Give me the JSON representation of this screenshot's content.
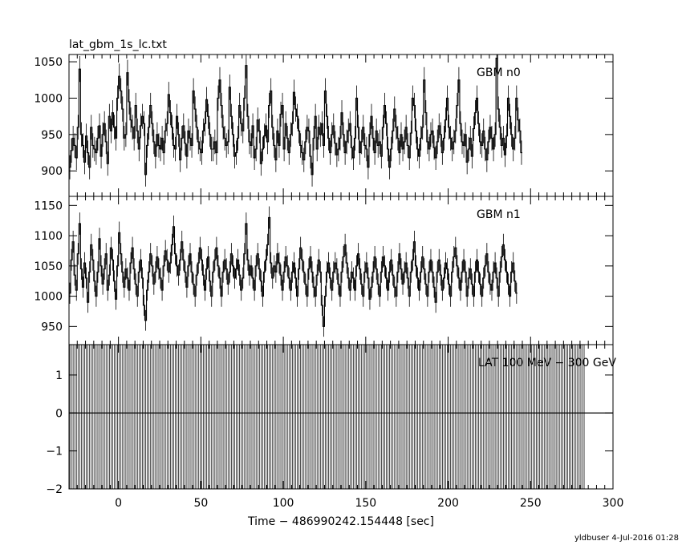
{
  "chart_data": {
    "type": "line",
    "title": "lat_gbm_1s_lc.txt",
    "xlabel": "Time − 486990242.154448 [sec]",
    "xlim": [
      -30,
      300
    ],
    "x_ticks": [
      0,
      50,
      100,
      150,
      200,
      250,
      300
    ],
    "x_tick_labels": [
      "0",
      "50",
      "100",
      "150",
      "200",
      "250",
      "300"
    ],
    "footer": "yldbuser  4-Jul-2016 01:28",
    "panels": [
      {
        "name": "GBM n0",
        "ylim": [
          865,
          1060
        ],
        "y_ticks": [
          900,
          950,
          1000,
          1050
        ],
        "y_tick_labels": [
          "900",
          "950",
          "1000",
          "1050"
        ],
        "x_start": -30,
        "x_step": 1,
        "values": [
          905,
          928,
          945,
          935,
          918,
          960,
          1040,
          950,
          935,
          912,
          948,
          925,
          905,
          960,
          935,
          930,
          925,
          945,
          962,
          920,
          950,
          965,
          940,
          910,
          975,
          955,
          980,
          960,
          945,
          1000,
          1030,
          1010,
          985,
          945,
          950,
          1035,
          995,
          970,
          960,
          945,
          990,
          955,
          930,
          962,
          975,
          965,
          895,
          935,
          960,
          990,
          965,
          940,
          920,
          950,
          935,
          930,
          945,
          925,
          955,
          965,
          1005,
          980,
          960,
          935,
          930,
          975,
          950,
          915,
          945,
          962,
          938,
          920,
          955,
          945,
          935,
          1010,
          985,
          960,
          940,
          930,
          925,
          955,
          965,
          998,
          975,
          950,
          930,
          930,
          940,
          925,
          1000,
          1025,
          990,
          960,
          945,
          935,
          940,
          1015,
          975,
          950,
          920,
          925,
          945,
          990,
          965,
          955,
          1000,
          1045,
          975,
          940,
          935,
          962,
          918,
          930,
          970,
          955,
          910,
          930,
          948,
          962,
          940,
          990,
          1010,
          960,
          935,
          915,
          955,
          935,
          978,
          990,
          930,
          965,
          945,
          925,
          950,
          965,
          1008,
          985,
          975,
          955,
          935,
          925,
          915,
          940,
          960,
          955,
          920,
          895,
          945,
          975,
          930,
          960,
          950,
          965,
          935,
          1010,
          975,
          945,
          925,
          950,
          962,
          938,
          922,
          930,
          945,
          980,
          950,
          925,
          940,
          955,
          965,
          932,
          918,
          945,
          1000,
          960,
          925,
          940,
          960,
          935,
          930,
          905,
          950,
          975,
          945,
          925,
          955,
          935,
          940,
          920,
          960,
          990,
          965,
          930,
          905,
          930,
          955,
          985,
          960,
          945,
          925,
          950,
          930,
          940,
          960,
          935,
          918,
          952,
          1000,
          990,
          955,
          930,
          920,
          945,
          960,
          1025,
          980,
          940,
          930,
          950,
          955,
          932,
          918,
          940,
          962,
          950,
          925,
          945,
          970,
          1000,
          960,
          945,
          930,
          940,
          955,
          990,
          1025,
          965,
          940,
          935,
          950,
          912,
          930,
          945,
          920,
          958,
          980,
          1000,
          965,
          940,
          935,
          955,
          930,
          915,
          940,
          960,
          945,
          930,
          950,
          1055,
          985,
          960,
          935,
          945,
          922,
          948,
          1000,
          975,
          950,
          930,
          945,
          1000,
          970,
          955,
          925
        ]
      },
      {
        "name": "GBM n1",
        "ylim": [
          920,
          1165
        ],
        "y_ticks": [
          950,
          1000,
          1050,
          1100,
          1150
        ],
        "y_tick_labels": [
          "950",
          "1000",
          "1050",
          "1100",
          "1150"
        ],
        "x_start": -30,
        "x_step": 1,
        "values": [
          1005,
          1060,
          1090,
          1035,
          1010,
          1070,
          1120,
          1045,
          1015,
          1055,
          1030,
          990,
          1040,
          1085,
          1060,
          1025,
          1000,
          1040,
          1095,
          1050,
          1020,
          1045,
          1070,
          1010,
          1035,
          1080,
          1060,
          1025,
          995,
          1050,
          1105,
          1070,
          1040,
          1015,
          1045,
          1030,
          1010,
          1055,
          1080,
          1045,
          1020,
          1000,
          1040,
          1060,
          1030,
          985,
          960,
          1010,
          1040,
          1070,
          1050,
          1020,
          1040,
          1065,
          1045,
          1030,
          1010,
          1050,
          1075,
          1060,
          1040,
          1055,
          1085,
          1115,
          1070,
          1050,
          1035,
          1060,
          1090,
          1060,
          1040,
          1015,
          1050,
          1070,
          1040,
          1020,
          1000,
          1035,
          1055,
          1080,
          1060,
          1035,
          1010,
          1045,
          1065,
          1025,
          1000,
          1040,
          1060,
          1080,
          1050,
          1030,
          1000,
          1040,
          1060,
          1045,
          1020,
          1040,
          1070,
          1050,
          1030,
          1045,
          1060,
          1035,
          1010,
          1030,
          1070,
          1120,
          1060,
          1035,
          1050,
          1030,
          1010,
          1050,
          1070,
          1045,
          1025,
          1000,
          1040,
          1060,
          1085,
          1130,
          1055,
          1030,
          1050,
          1040,
          1070,
          1055,
          1035,
          1010,
          1040,
          1065,
          1050,
          1030,
          1010,
          1040,
          1055,
          1030,
          1000,
          1045,
          1080,
          1060,
          1040,
          1020,
          1000,
          1045,
          1065,
          1040,
          1015,
          1000,
          1035,
          1060,
          1040,
          985,
          950,
          1000,
          1040,
          1055,
          1030,
          1010,
          1040,
          1055,
          1045,
          1020,
          1000,
          1040,
          1065,
          1085,
          1055,
          1030,
          1010,
          1040,
          1030,
          1010,
          1050,
          1070,
          1045,
          1020,
          1000,
          1040,
          1055,
          1030,
          995,
          1015,
          1040,
          1065,
          1045,
          1020,
          1000,
          1040,
          1065,
          1050,
          1030,
          1010,
          1040,
          1060,
          1035,
          1015,
          1000,
          1040,
          1070,
          1045,
          1020,
          1040,
          1055,
          1030,
          1000,
          1040,
          1060,
          1090,
          1050,
          1030,
          1010,
          1040,
          1065,
          1045,
          1020,
          1000,
          1040,
          1060,
          1040,
          1015,
          990,
          1040,
          1060,
          1035,
          1010,
          1030,
          1055,
          1045,
          1020,
          1000,
          1040,
          1065,
          1080,
          1050,
          1030,
          1010,
          1040,
          1060,
          1040,
          1000,
          1030,
          1045,
          1020,
          1000,
          1040,
          1060,
          1040,
          1020,
          1000,
          1030,
          1050,
          1070,
          1040,
          1020,
          1010,
          1040,
          1055,
          1030,
          1000,
          1040,
          1065,
          1085,
          1060,
          1040,
          1020,
          1000,
          1040,
          1055,
          1025,
          1005
        ]
      },
      {
        "name": "LAT 100 MeV − 300 GeV",
        "ylim": [
          -2,
          1.8
        ],
        "y_ticks": [
          -2,
          -1,
          0,
          1
        ],
        "y_tick_labels": [
          "−2",
          "−1",
          "0",
          "1"
        ],
        "x_start": -30,
        "x_step": 1,
        "values": [
          0,
          0,
          0,
          0,
          0,
          0,
          0,
          0,
          0,
          0,
          0,
          0,
          0,
          0,
          0,
          0,
          0,
          0,
          0,
          0,
          0,
          0,
          0,
          0,
          0,
          0,
          0,
          0,
          0,
          0,
          0,
          0,
          0,
          0,
          0,
          0,
          0,
          0,
          0,
          0,
          0,
          0,
          0,
          0,
          0,
          0,
          0,
          0,
          0,
          0,
          0,
          0,
          0,
          0,
          0,
          0,
          0,
          0,
          0,
          0,
          0,
          0,
          0,
          0,
          0,
          0,
          0,
          0,
          0,
          0,
          0,
          0,
          0,
          0,
          0,
          0,
          0,
          0,
          0,
          0,
          0,
          0,
          0,
          0,
          0,
          0,
          0,
          0,
          0,
          0,
          0,
          0,
          0,
          0,
          0,
          0,
          0,
          0,
          0,
          0,
          0,
          0,
          0,
          0,
          0,
          0,
          0,
          0,
          0,
          0,
          0,
          0,
          0,
          0,
          0,
          0,
          0,
          0,
          0,
          0,
          0,
          0,
          0,
          0,
          0,
          0,
          0,
          0,
          0,
          0,
          0,
          0,
          0,
          0,
          0,
          0,
          0,
          0,
          0,
          0,
          0,
          0,
          0,
          0,
          0,
          0,
          0,
          0,
          0,
          0,
          0,
          0,
          0,
          0,
          0,
          0,
          0,
          0,
          0,
          0,
          0,
          0,
          0,
          0,
          0,
          0,
          0,
          0,
          0,
          0,
          0,
          0,
          0,
          0,
          0,
          0,
          0,
          0,
          0,
          0,
          0,
          0,
          0,
          0,
          0,
          0,
          0,
          0,
          0,
          0,
          0,
          0,
          0,
          0,
          0,
          0,
          0,
          0,
          0,
          0,
          0,
          0,
          0,
          0,
          0,
          0,
          0,
          0,
          0,
          0,
          0,
          0,
          0,
          0,
          0,
          0,
          0,
          0,
          0,
          0,
          0,
          0,
          0,
          0,
          0,
          0,
          0,
          0,
          0,
          0,
          0,
          0,
          0,
          0,
          0,
          0,
          0,
          0,
          0,
          0,
          0,
          0,
          0,
          0,
          0,
          0,
          0,
          0,
          0,
          0,
          0,
          0,
          0,
          0,
          0,
          0,
          0,
          0,
          0,
          0,
          0,
          0,
          0,
          0,
          0,
          0,
          0,
          0,
          0,
          0,
          0,
          0,
          0,
          0,
          0,
          0,
          0,
          0,
          0,
          0,
          0,
          0,
          0,
          0,
          0,
          0,
          0,
          0,
          0,
          0,
          0,
          0,
          0,
          0,
          0,
          0,
          0,
          0,
          0,
          0,
          0,
          0,
          0,
          0,
          0,
          0,
          0,
          0,
          0,
          0,
          0,
          0,
          0
        ],
        "errors_full_range": true
      }
    ]
  }
}
